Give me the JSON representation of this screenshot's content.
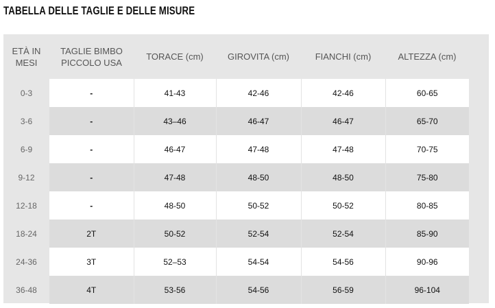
{
  "title": "TABELLA DELLE TAGLIE E DELLE MISURE",
  "table": {
    "headers": [
      "ETÀ IN MESI",
      "TAGLIE BIMBO PICCOLO USA",
      "TORACE (cm)",
      "GIROVITA (cm)",
      "FIANCHI (cm)",
      "ALTEZZA (cm)"
    ],
    "rows": [
      [
        "0-3",
        "-",
        "41-43",
        "42-46",
        "42-46",
        "60-65"
      ],
      [
        "3-6",
        "-",
        "43–46",
        "46-47",
        "46-47",
        "65-70"
      ],
      [
        "6-9",
        "-",
        "46-47",
        "47-48",
        "47-48",
        "70-75"
      ],
      [
        "9-12",
        "-",
        "47-48",
        "48-50",
        "48-50",
        "75-80"
      ],
      [
        "12-18",
        "-",
        "48-50",
        "50-52",
        "50-52",
        "80-85"
      ],
      [
        "18-24",
        "2T",
        "50-52",
        "52-54",
        "52-54",
        "85-90"
      ],
      [
        "24-36",
        "3T",
        "52–53",
        "54-54",
        "54-56",
        "90-96"
      ],
      [
        "36-48",
        "4T",
        "53-56",
        "54-56",
        "56-59",
        "96-104"
      ]
    ]
  }
}
